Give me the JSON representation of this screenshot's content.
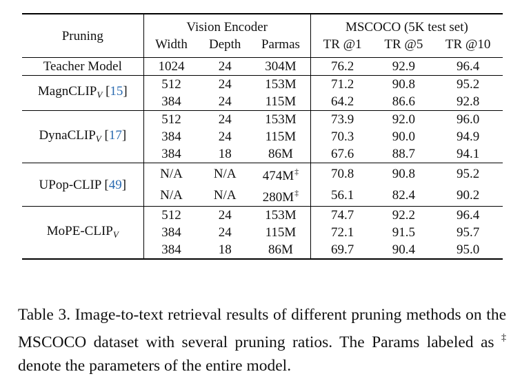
{
  "table": {
    "headers": {
      "pruning": "Pruning",
      "vision_encoder": "Vision Encoder",
      "dataset": "MSCOCO (5K test set)",
      "width": "Width",
      "depth": "Depth",
      "params": "Parmas",
      "tr1": "TR @1",
      "tr5": "TR @5",
      "tr10": "TR @10"
    },
    "groups": [
      {
        "method": "Teacher Model",
        "rows": [
          {
            "width": "1024",
            "depth": "24",
            "params": "304M",
            "tr1": "76.2",
            "tr5": "92.9",
            "tr10": "96.4"
          }
        ]
      },
      {
        "method": "MagnCLIP",
        "subscript": "V",
        "ref": "15",
        "rows": [
          {
            "width": "512",
            "depth": "24",
            "params": "153M",
            "tr1": "71.2",
            "tr5": "90.8",
            "tr10": "95.2"
          },
          {
            "width": "384",
            "depth": "24",
            "params": "115M",
            "tr1": "64.2",
            "tr5": "86.6",
            "tr10": "92.8"
          }
        ]
      },
      {
        "method": "DynaCLIP",
        "subscript": "V",
        "ref": "17",
        "rows": [
          {
            "width": "512",
            "depth": "24",
            "params": "153M",
            "tr1": "73.9",
            "tr5": "92.0",
            "tr10": "96.0"
          },
          {
            "width": "384",
            "depth": "24",
            "params": "115M",
            "tr1": "70.3",
            "tr5": "90.0",
            "tr10": "94.9"
          },
          {
            "width": "384",
            "depth": "18",
            "params": "86M",
            "tr1": "67.6",
            "tr5": "88.7",
            "tr10": "94.1"
          }
        ]
      },
      {
        "method": "UPop-CLIP",
        "ref": "49",
        "rows": [
          {
            "width": "N/A",
            "depth": "N/A",
            "params": "474M",
            "dagger": "‡",
            "tr1": "70.8",
            "tr5": "90.8",
            "tr10": "95.2"
          },
          {
            "width": "N/A",
            "depth": "N/A",
            "params": "280M",
            "dagger": "‡",
            "tr1": "56.1",
            "tr5": "82.4",
            "tr10": "90.2"
          }
        ]
      },
      {
        "method": "MoPE-CLIP",
        "subscript": "V",
        "rows": [
          {
            "width": "512",
            "depth": "24",
            "params": "153M",
            "tr1": "74.7",
            "tr5": "92.2",
            "tr10": "96.4"
          },
          {
            "width": "384",
            "depth": "24",
            "params": "115M",
            "tr1": "72.1",
            "tr5": "91.5",
            "tr10": "95.7"
          },
          {
            "width": "384",
            "depth": "18",
            "params": "86M",
            "tr1": "69.7",
            "tr5": "90.4",
            "tr10": "95.0"
          }
        ]
      }
    ]
  },
  "caption": {
    "part1": "Table 3. Image-to-text retrieval results of different pruning methods on the MSCOCO dataset with several pruning ratios. The Params labeled as ",
    "symbol": "‡",
    "part2": " denote the parameters of the entire model."
  }
}
